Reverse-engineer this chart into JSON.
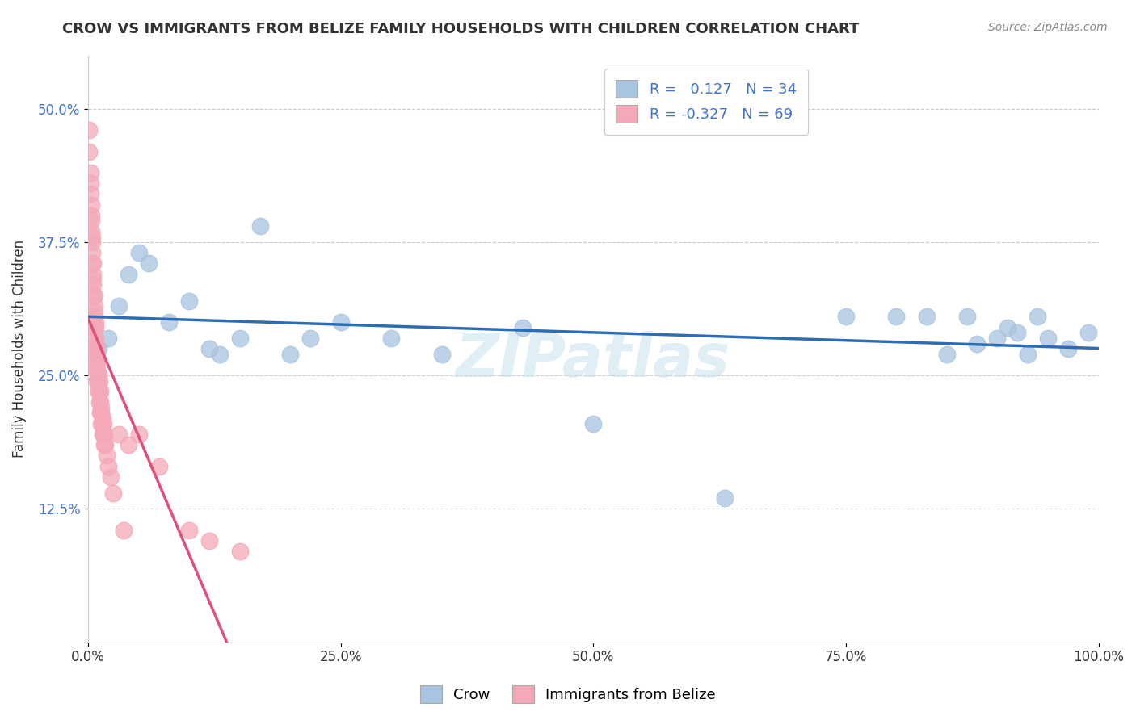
{
  "title": "CROW VS IMMIGRANTS FROM BELIZE FAMILY HOUSEHOLDS WITH CHILDREN CORRELATION CHART",
  "source": "Source: ZipAtlas.com",
  "xlabel": "",
  "ylabel": "Family Households with Children",
  "watermark": "ZIPatlas",
  "xlim": [
    0.0,
    1.0
  ],
  "ylim": [
    0.0,
    0.55
  ],
  "xticks": [
    0.0,
    0.25,
    0.5,
    0.75,
    1.0
  ],
  "xticklabels": [
    "0.0%",
    "25.0%",
    "50.0%",
    "75.0%",
    "100.0%"
  ],
  "yticks": [
    0.0,
    0.125,
    0.25,
    0.375,
    0.5
  ],
  "yticklabels": [
    "",
    "12.5%",
    "25.0%",
    "37.5%",
    "50.0%"
  ],
  "crow_R": 0.127,
  "crow_N": 34,
  "belize_R": -0.327,
  "belize_N": 69,
  "crow_color": "#a8c4e0",
  "crow_line_color": "#2e6db4",
  "belize_color": "#f4a8b8",
  "belize_line_solid_color": "#e0507a",
  "belize_line_dashed_color": "#f0a0b8",
  "crow_x": [
    0.01,
    0.02,
    0.03,
    0.04,
    0.05,
    0.06,
    0.08,
    0.1,
    0.12,
    0.13,
    0.15,
    0.17,
    0.2,
    0.22,
    0.25,
    0.3,
    0.35,
    0.43,
    0.5,
    0.63,
    0.75,
    0.8,
    0.83,
    0.85,
    0.87,
    0.88,
    0.9,
    0.91,
    0.92,
    0.93,
    0.94,
    0.95,
    0.97,
    0.99
  ],
  "crow_y": [
    0.275,
    0.285,
    0.315,
    0.345,
    0.365,
    0.355,
    0.3,
    0.32,
    0.275,
    0.27,
    0.285,
    0.39,
    0.27,
    0.285,
    0.3,
    0.285,
    0.27,
    0.295,
    0.205,
    0.135,
    0.305,
    0.305,
    0.305,
    0.27,
    0.305,
    0.28,
    0.285,
    0.295,
    0.29,
    0.27,
    0.305,
    0.285,
    0.275,
    0.29
  ],
  "belize_x": [
    0.001,
    0.001,
    0.002,
    0.002,
    0.002,
    0.003,
    0.003,
    0.003,
    0.003,
    0.004,
    0.004,
    0.004,
    0.004,
    0.005,
    0.005,
    0.005,
    0.005,
    0.005,
    0.006,
    0.006,
    0.006,
    0.006,
    0.006,
    0.007,
    0.007,
    0.007,
    0.007,
    0.007,
    0.008,
    0.008,
    0.008,
    0.008,
    0.008,
    0.009,
    0.009,
    0.009,
    0.01,
    0.01,
    0.01,
    0.01,
    0.011,
    0.011,
    0.011,
    0.012,
    0.012,
    0.012,
    0.013,
    0.013,
    0.013,
    0.014,
    0.014,
    0.014,
    0.015,
    0.015,
    0.016,
    0.016,
    0.017,
    0.018,
    0.02,
    0.022,
    0.025,
    0.03,
    0.035,
    0.04,
    0.05,
    0.07,
    0.1,
    0.12,
    0.15
  ],
  "belize_y": [
    0.46,
    0.48,
    0.44,
    0.42,
    0.43,
    0.41,
    0.4,
    0.395,
    0.385,
    0.375,
    0.38,
    0.365,
    0.355,
    0.355,
    0.345,
    0.34,
    0.335,
    0.325,
    0.325,
    0.315,
    0.31,
    0.305,
    0.295,
    0.3,
    0.295,
    0.285,
    0.28,
    0.275,
    0.275,
    0.27,
    0.265,
    0.26,
    0.255,
    0.26,
    0.255,
    0.245,
    0.24,
    0.25,
    0.245,
    0.235,
    0.245,
    0.235,
    0.225,
    0.235,
    0.225,
    0.215,
    0.22,
    0.215,
    0.205,
    0.21,
    0.205,
    0.195,
    0.205,
    0.195,
    0.195,
    0.185,
    0.185,
    0.175,
    0.165,
    0.155,
    0.14,
    0.195,
    0.105,
    0.185,
    0.195,
    0.165,
    0.105,
    0.095,
    0.085
  ],
  "background_color": "#ffffff",
  "grid_color": "#cccccc"
}
